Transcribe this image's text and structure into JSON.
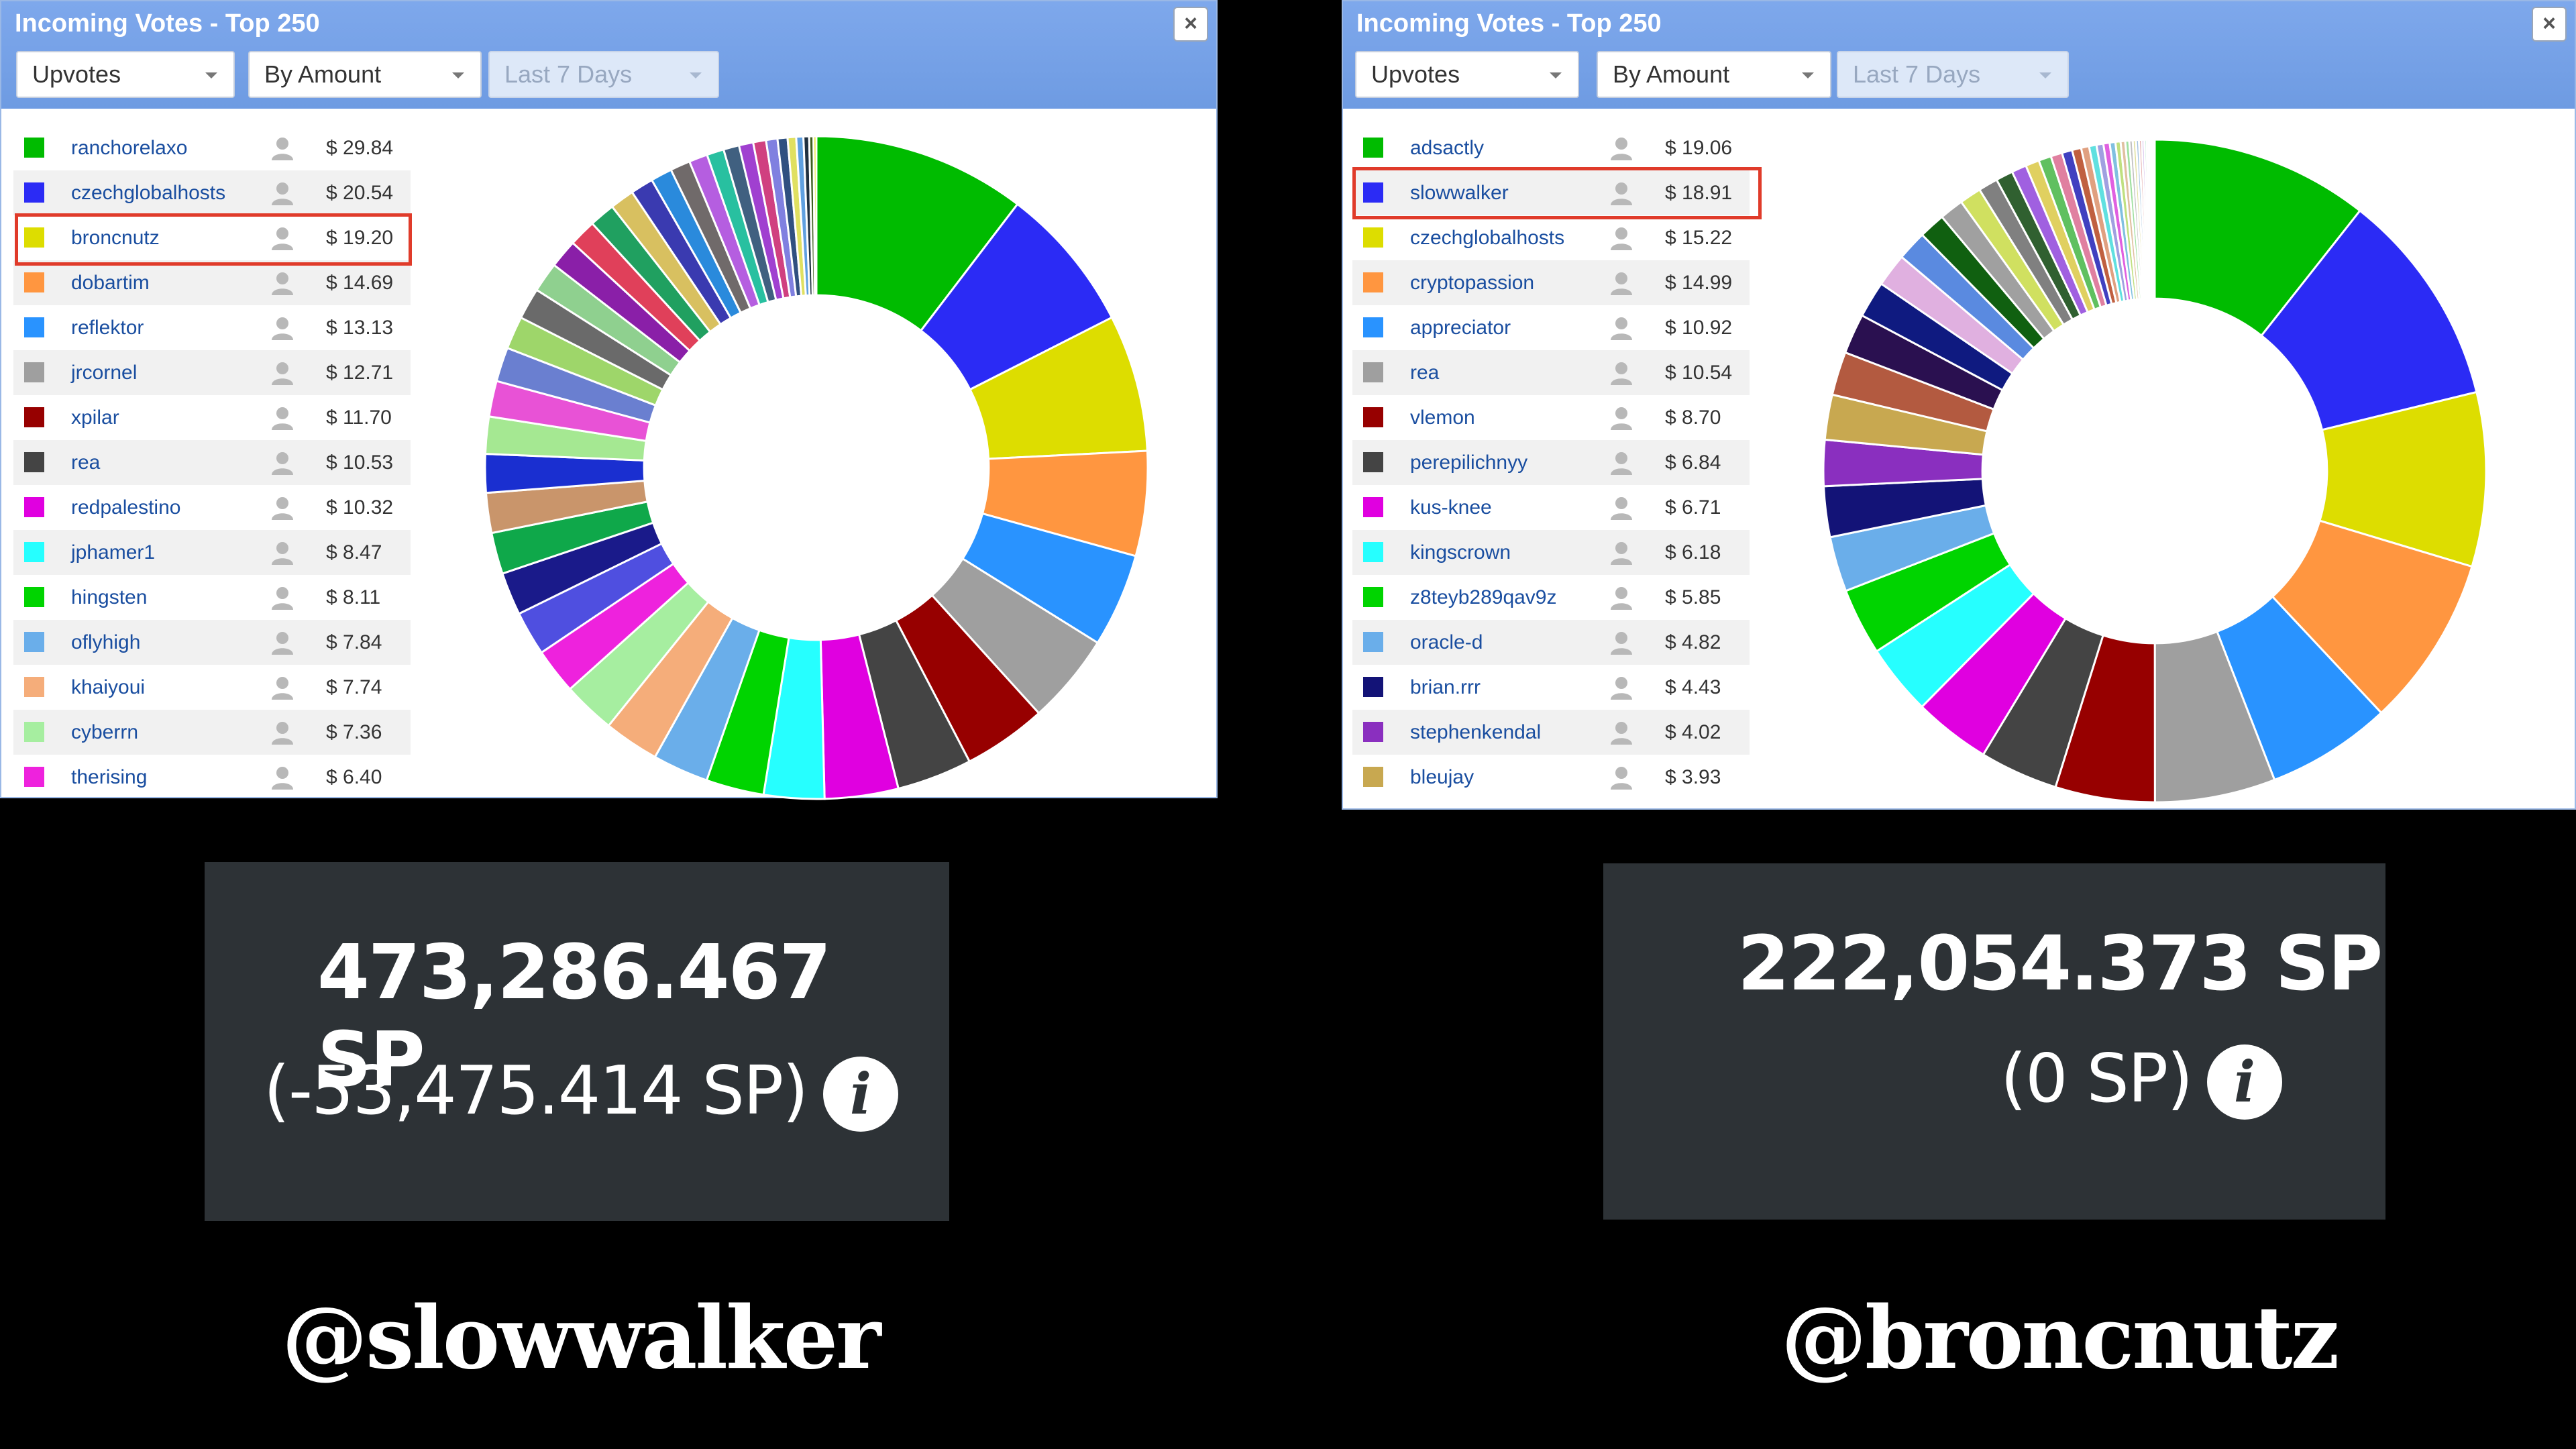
{
  "left": {
    "title": "Incoming Votes - Top 250",
    "close": "×",
    "dropdowns": {
      "type": "Upvotes",
      "sort": "By Amount",
      "period": "Last 7 Days"
    },
    "rows": [
      {
        "name": "ranchorelaxo",
        "amount": "$ 29.84",
        "color": "#00bb00"
      },
      {
        "name": "czechglobalhosts",
        "amount": "$ 20.54",
        "color": "#2b2bf5"
      },
      {
        "name": "broncnutz",
        "amount": "$ 19.20",
        "color": "#dddd00"
      },
      {
        "name": "dobartim",
        "amount": "$ 14.69",
        "color": "#ff9640"
      },
      {
        "name": "reflektor",
        "amount": "$ 13.13",
        "color": "#2993ff"
      },
      {
        "name": "jrcornel",
        "amount": "$ 12.71",
        "color": "#9f9f9f"
      },
      {
        "name": "xpilar",
        "amount": "$ 11.70",
        "color": "#970000"
      },
      {
        "name": "rea",
        "amount": "$ 10.53",
        "color": "#444444"
      },
      {
        "name": "redpalestino",
        "amount": "$ 10.32",
        "color": "#e000e0"
      },
      {
        "name": "jphamer1",
        "amount": "$ 8.47",
        "color": "#26ffff"
      },
      {
        "name": "hingsten",
        "amount": "$ 8.11",
        "color": "#00d400"
      },
      {
        "name": "oflyhigh",
        "amount": "$ 7.84",
        "color": "#6aaeea"
      },
      {
        "name": "khaiyoui",
        "amount": "$ 7.74",
        "color": "#f5ad7a"
      },
      {
        "name": "cyberrn",
        "amount": "$ 7.36",
        "color": "#a6eea0"
      },
      {
        "name": "therising",
        "amount": "$ 6.40",
        "color": "#ee22dd"
      }
    ],
    "highlighted": "broncnutz",
    "chart_data": {
      "type": "pie",
      "style": "donut",
      "labels": [
        "ranchorelaxo",
        "czechglobalhosts",
        "broncnutz",
        "dobartim",
        "reflektor",
        "jrcornel",
        "xpilar",
        "rea",
        "redpalestino",
        "jphamer1",
        "hingsten",
        "oflyhigh",
        "khaiyoui",
        "cyberrn",
        "therising"
      ],
      "values": [
        29.84,
        20.54,
        19.2,
        14.69,
        13.13,
        12.71,
        11.7,
        10.53,
        10.32,
        8.47,
        8.11,
        7.84,
        7.74,
        7.36,
        6.4
      ],
      "extra_slices": [
        6.2,
        6.0,
        5.8,
        5.6,
        5.4,
        5.2,
        5.0,
        4.8,
        4.6,
        4.4,
        4.2,
        4.0,
        3.8,
        3.6,
        3.4,
        3.2,
        3.0,
        2.8,
        2.6,
        2.4,
        2.2,
        2.0,
        1.8,
        1.6,
        1.4,
        1.2,
        1.0,
        0.8,
        0.6,
        0.4
      ],
      "extra_colors": [
        "#4f4fe0",
        "#1a1a8a",
        "#0fa84a",
        "#c9956b",
        "#1a2fd0",
        "#a5e892",
        "#e852d6",
        "#6a7fd0",
        "#9ed66a",
        "#6a6a6a",
        "#8fd08f",
        "#8a1fa8",
        "#e0405a",
        "#20a060",
        "#d8c060",
        "#3a3ab0",
        "#2a8adc",
        "#706a6a",
        "#b55ee0",
        "#28c0a0",
        "#406080",
        "#a040d0",
        "#d04080",
        "#8080e0",
        "#305080",
        "#e0e060",
        "#60a0e0",
        "#203040",
        "#406020",
        "#e0e000"
      ]
    },
    "stat": {
      "main": "473,286.467 SP",
      "sub": "(-53,475.414 SP)",
      "info": "i"
    },
    "handle": "@slowwalker"
  },
  "right": {
    "title": "Incoming Votes - Top 250",
    "close": "×",
    "dropdowns": {
      "type": "Upvotes",
      "sort": "By Amount",
      "period": "Last 7 Days"
    },
    "rows": [
      {
        "name": "adsactly",
        "amount": "$ 19.06",
        "color": "#00bb00"
      },
      {
        "name": "slowwalker",
        "amount": "$ 18.91",
        "color": "#2b2bf5"
      },
      {
        "name": "czechglobalhosts",
        "amount": "$ 15.22",
        "color": "#dddd00"
      },
      {
        "name": "cryptopassion",
        "amount": "$ 14.99",
        "color": "#ff9640"
      },
      {
        "name": "appreciator",
        "amount": "$ 10.92",
        "color": "#2993ff"
      },
      {
        "name": "rea",
        "amount": "$ 10.54",
        "color": "#9f9f9f"
      },
      {
        "name": "vlemon",
        "amount": "$ 8.70",
        "color": "#970000"
      },
      {
        "name": "perepilichnyy",
        "amount": "$ 6.84",
        "color": "#444444"
      },
      {
        "name": "kus-knee",
        "amount": "$ 6.71",
        "color": "#e000e0"
      },
      {
        "name": "kingscrown",
        "amount": "$ 6.18",
        "color": "#26ffff"
      },
      {
        "name": "z8teyb289qav9z",
        "amount": "$ 5.85",
        "color": "#00d400"
      },
      {
        "name": "oracle-d",
        "amount": "$ 4.82",
        "color": "#6aaeea"
      },
      {
        "name": "brian.rrr",
        "amount": "$ 4.43",
        "color": "#131377"
      },
      {
        "name": "stephenkendal",
        "amount": "$ 4.02",
        "color": "#8a2fbf"
      },
      {
        "name": "bleujay",
        "amount": "$ 3.93",
        "color": "#c8a850"
      }
    ],
    "highlighted": "slowwalker",
    "chart_data": {
      "type": "pie",
      "style": "donut",
      "labels": [
        "adsactly",
        "slowwalker",
        "czechglobalhosts",
        "cryptopassion",
        "appreciator",
        "rea",
        "vlemon",
        "perepilichnyy",
        "kus-knee",
        "kingscrown",
        "z8teyb289qav9z",
        "oracle-d",
        "brian.rrr",
        "stephenkendal",
        "bleujay"
      ],
      "values": [
        19.06,
        18.91,
        15.22,
        14.99,
        10.92,
        10.54,
        8.7,
        6.84,
        6.71,
        6.18,
        5.85,
        4.82,
        4.43,
        4.02,
        3.93
      ],
      "extra_slices": [
        3.8,
        3.5,
        3.2,
        2.9,
        2.6,
        2.3,
        2.1,
        1.9,
        1.7,
        1.5,
        1.3,
        1.2,
        1.1,
        1.0,
        0.9,
        0.8,
        0.7,
        0.65,
        0.6,
        0.55,
        0.5,
        0.45,
        0.4,
        0.35,
        0.3,
        0.28,
        0.26,
        0.24,
        0.22,
        0.2,
        0.18,
        0.16,
        0.14,
        0.12,
        0.1
      ],
      "extra_colors": [
        "#b35a40",
        "#2a1050",
        "#0f1a80",
        "#e0b0e0",
        "#5a8ae0",
        "#106010",
        "#a0a0a0",
        "#d0e060",
        "#808080",
        "#306030",
        "#a060e0",
        "#e0d060",
        "#60c060",
        "#e080a0",
        "#4040c0",
        "#c06040",
        "#e0a080",
        "#60e0e0",
        "#a0a0e0",
        "#e060e0",
        "#80c0e0",
        "#c0e080",
        "#e0c0a0",
        "#a0e0a0",
        "#c0c0c0",
        "#e0e0a0",
        "#a0c0e0",
        "#e0a0a0",
        "#c0a0e0",
        "#a0e0c0",
        "#e0c0e0",
        "#c0e0e0",
        "#e0e0c0",
        "#d0d0d0",
        "#f0f0a0"
      ]
    },
    "stat": {
      "main": "222,054.373 SP",
      "sub": "(0 SP)",
      "info": "i"
    },
    "handle": "@broncnutz"
  }
}
